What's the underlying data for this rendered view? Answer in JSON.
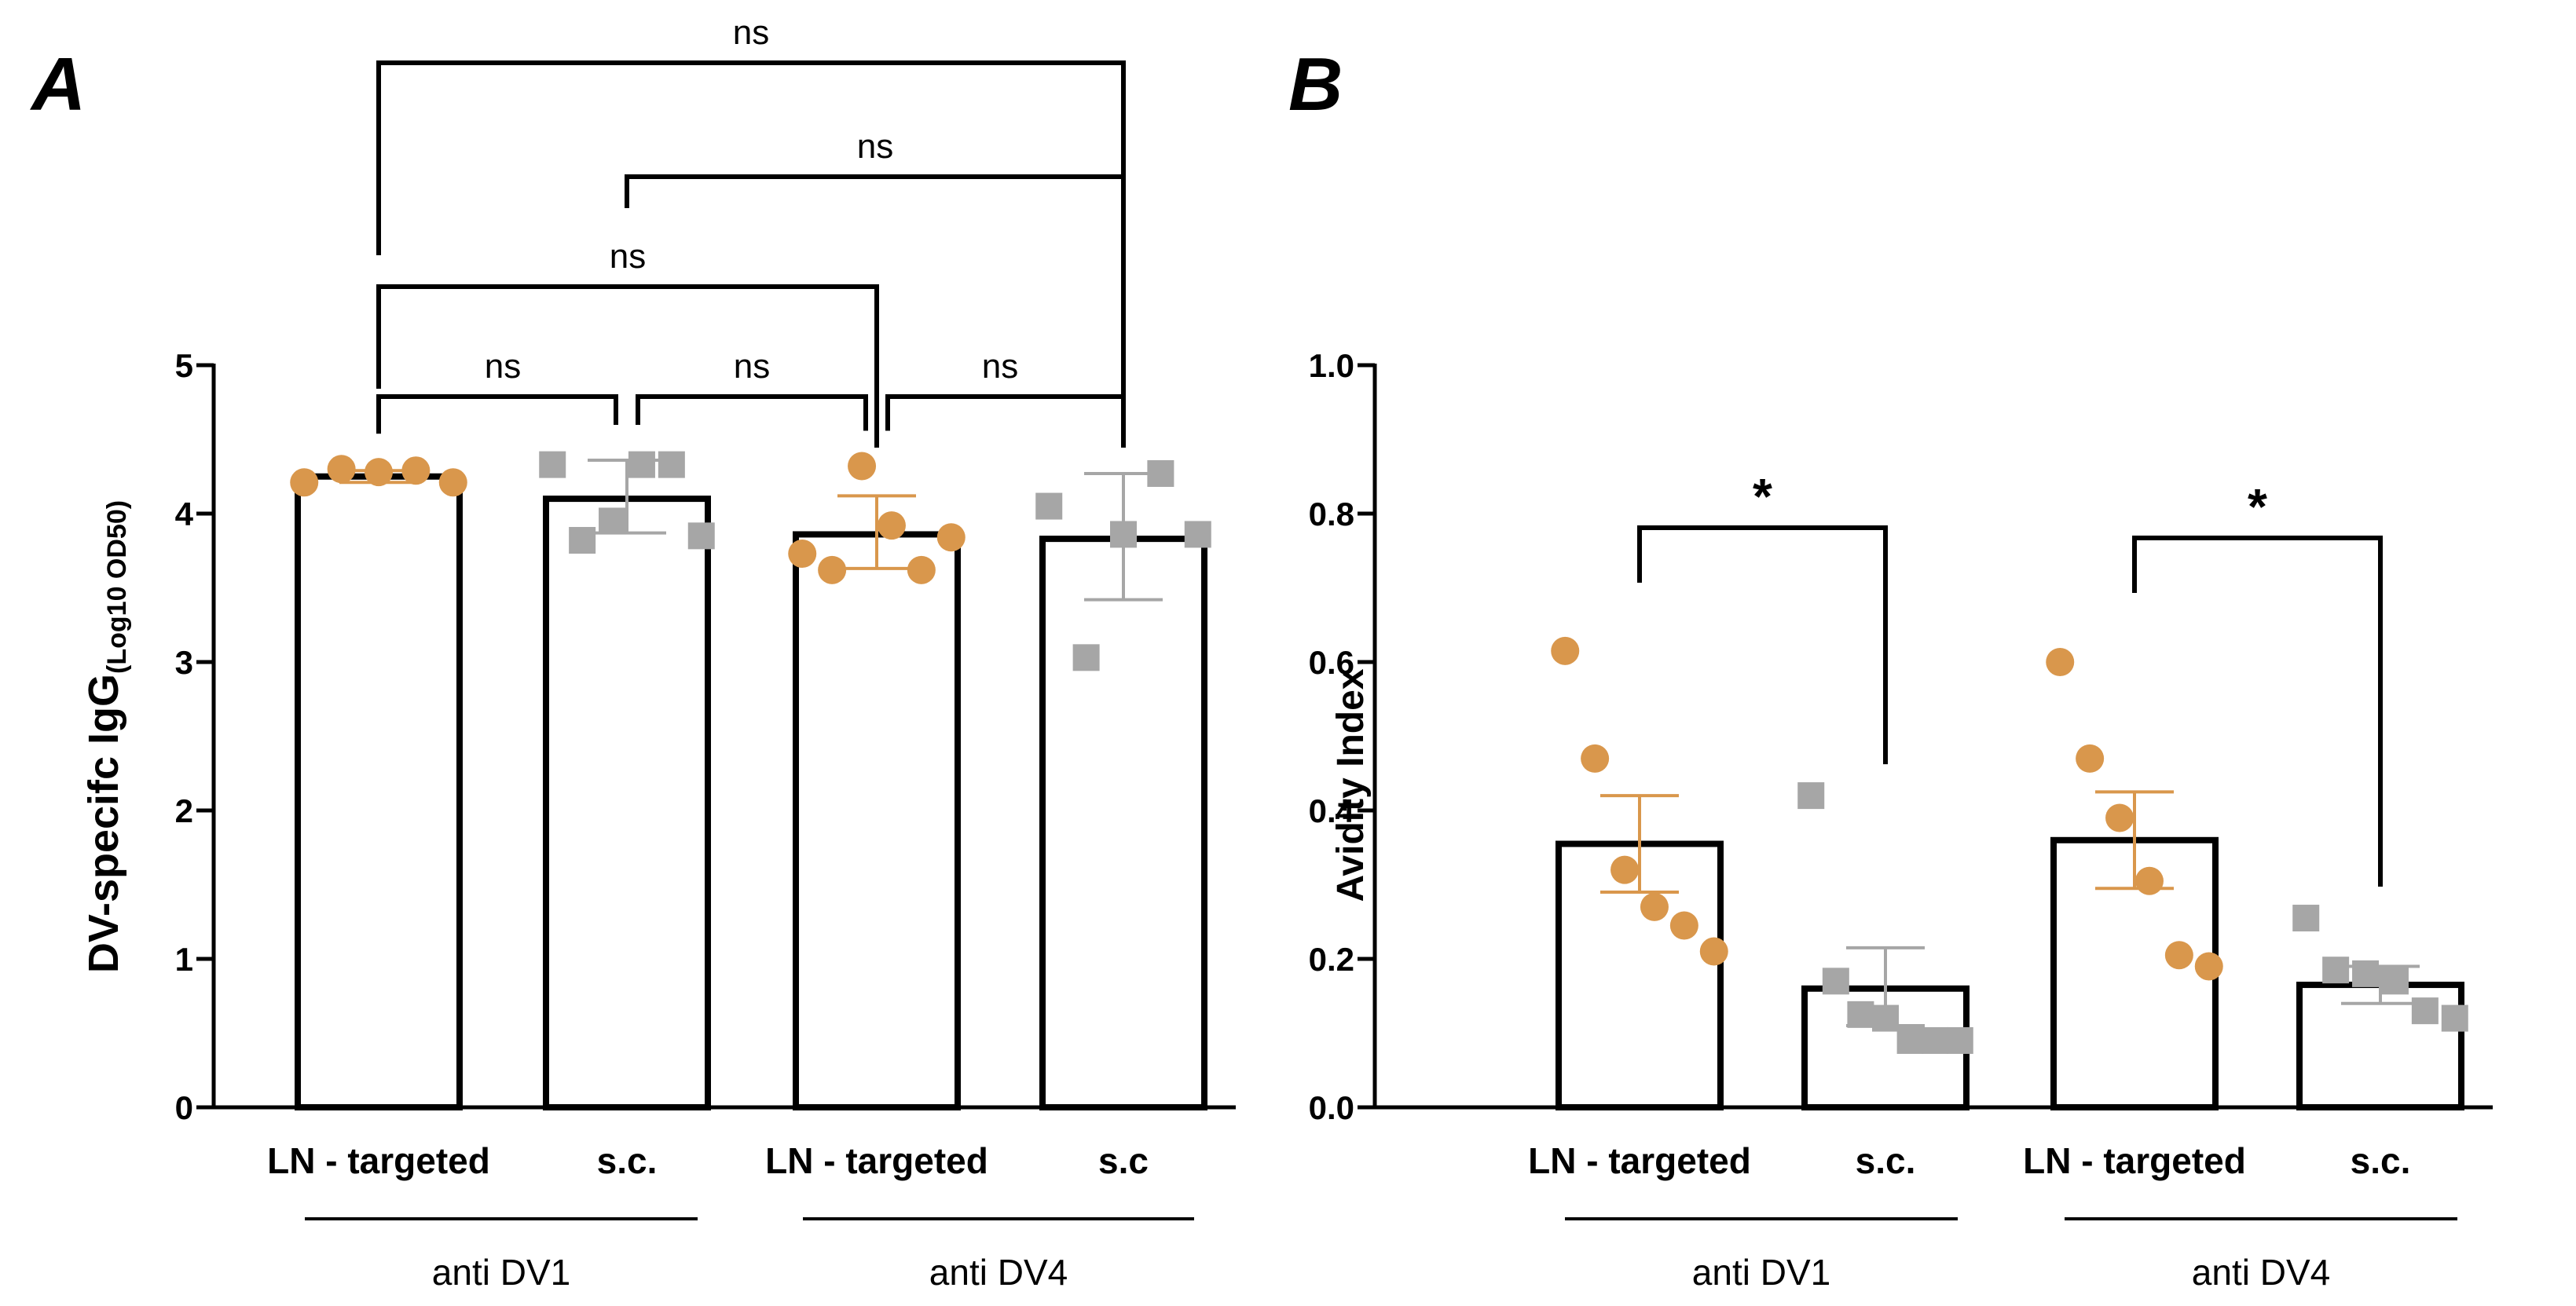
{
  "colors": {
    "orange": "#d9974c",
    "gray": "#a6a6a6",
    "black": "#000000"
  },
  "chart_data": [
    {
      "panel_label": "A",
      "type": "bar",
      "ylabel": "DV-specifc IgG",
      "ylabel_subscript": "(Log10 OD50)",
      "xlabel": "",
      "ylim": [
        0,
        5
      ],
      "yticks": [
        "0",
        "1",
        "2",
        "3",
        "4",
        "5"
      ],
      "categories": [
        "LN - targeted",
        "s.c.",
        "LN - targeted",
        "s.c"
      ],
      "groups": [
        {
          "label": "anti DV1",
          "categories": [
            0,
            1
          ]
        },
        {
          "label": "anti DV4",
          "categories": [
            2,
            3
          ]
        }
      ],
      "bars": [
        {
          "category_index": 0,
          "mean": 4.25,
          "error_low": 4.21,
          "error_high": 4.29,
          "color": "orange",
          "marker": "circle",
          "points": [
            4.21,
            4.3,
            4.28,
            4.29,
            4.21
          ]
        },
        {
          "category_index": 1,
          "mean": 4.1,
          "error_low": 3.87,
          "error_high": 4.36,
          "color": "gray",
          "marker": "square",
          "points": [
            4.33,
            3.82,
            3.95,
            4.33,
            4.33,
            3.85
          ]
        },
        {
          "category_index": 2,
          "mean": 3.86,
          "error_low": 3.63,
          "error_high": 4.12,
          "color": "orange",
          "marker": "circle",
          "points": [
            3.73,
            3.62,
            4.32,
            3.92,
            3.62,
            3.84
          ]
        },
        {
          "category_index": 3,
          "mean": 3.83,
          "error_low": 3.42,
          "error_high": 4.27,
          "color": "gray",
          "marker": "square",
          "points": [
            4.05,
            3.03,
            3.86,
            4.27,
            3.86
          ]
        }
      ],
      "comparisons": [
        {
          "from": 0,
          "to": 1,
          "label": "ns"
        },
        {
          "from": 1,
          "to": 2,
          "label": "ns"
        },
        {
          "from": 2,
          "to": 3,
          "label": "ns"
        },
        {
          "from": 0,
          "to": 2,
          "label": "ns"
        },
        {
          "from": 1,
          "to": 3,
          "label": "ns"
        },
        {
          "from": 0,
          "to": 3,
          "label": "ns"
        }
      ]
    },
    {
      "panel_label": "B",
      "type": "bar",
      "ylabel": "Avidity Index",
      "xlabel": "",
      "ylim": [
        0,
        1.0
      ],
      "yticks": [
        "0.0",
        "0.2",
        "0.4",
        "0.6",
        "0.8",
        "1.0"
      ],
      "categories": [
        "LN - targeted",
        "s.c.",
        "LN - targeted",
        "s.c."
      ],
      "groups": [
        {
          "label": "anti DV1",
          "categories": [
            0,
            1
          ]
        },
        {
          "label": "anti DV4",
          "categories": [
            2,
            3
          ]
        }
      ],
      "bars": [
        {
          "category_index": 0,
          "mean": 0.355,
          "error_low": 0.29,
          "error_high": 0.42,
          "color": "orange",
          "marker": "circle",
          "points": [
            0.615,
            0.47,
            0.32,
            0.27,
            0.245,
            0.21
          ]
        },
        {
          "category_index": 1,
          "mean": 0.16,
          "error_low": 0.11,
          "error_high": 0.215,
          "color": "gray",
          "marker": "square",
          "points": [
            0.42,
            0.17,
            0.125,
            0.12,
            0.09,
            0.09,
            0.09
          ]
        },
        {
          "category_index": 2,
          "mean": 0.36,
          "error_low": 0.295,
          "error_high": 0.425,
          "color": "orange",
          "marker": "circle",
          "points": [
            0.6,
            0.47,
            0.39,
            0.305,
            0.205,
            0.19
          ]
        },
        {
          "category_index": 3,
          "mean": 0.165,
          "error_low": 0.14,
          "error_high": 0.19,
          "color": "gray",
          "marker": "square",
          "points": [
            0.255,
            0.185,
            0.18,
            0.17,
            0.13,
            0.12
          ]
        }
      ],
      "comparisons": [
        {
          "from": 0,
          "to": 1,
          "label": "*"
        },
        {
          "from": 2,
          "to": 3,
          "label": "*"
        }
      ]
    }
  ]
}
